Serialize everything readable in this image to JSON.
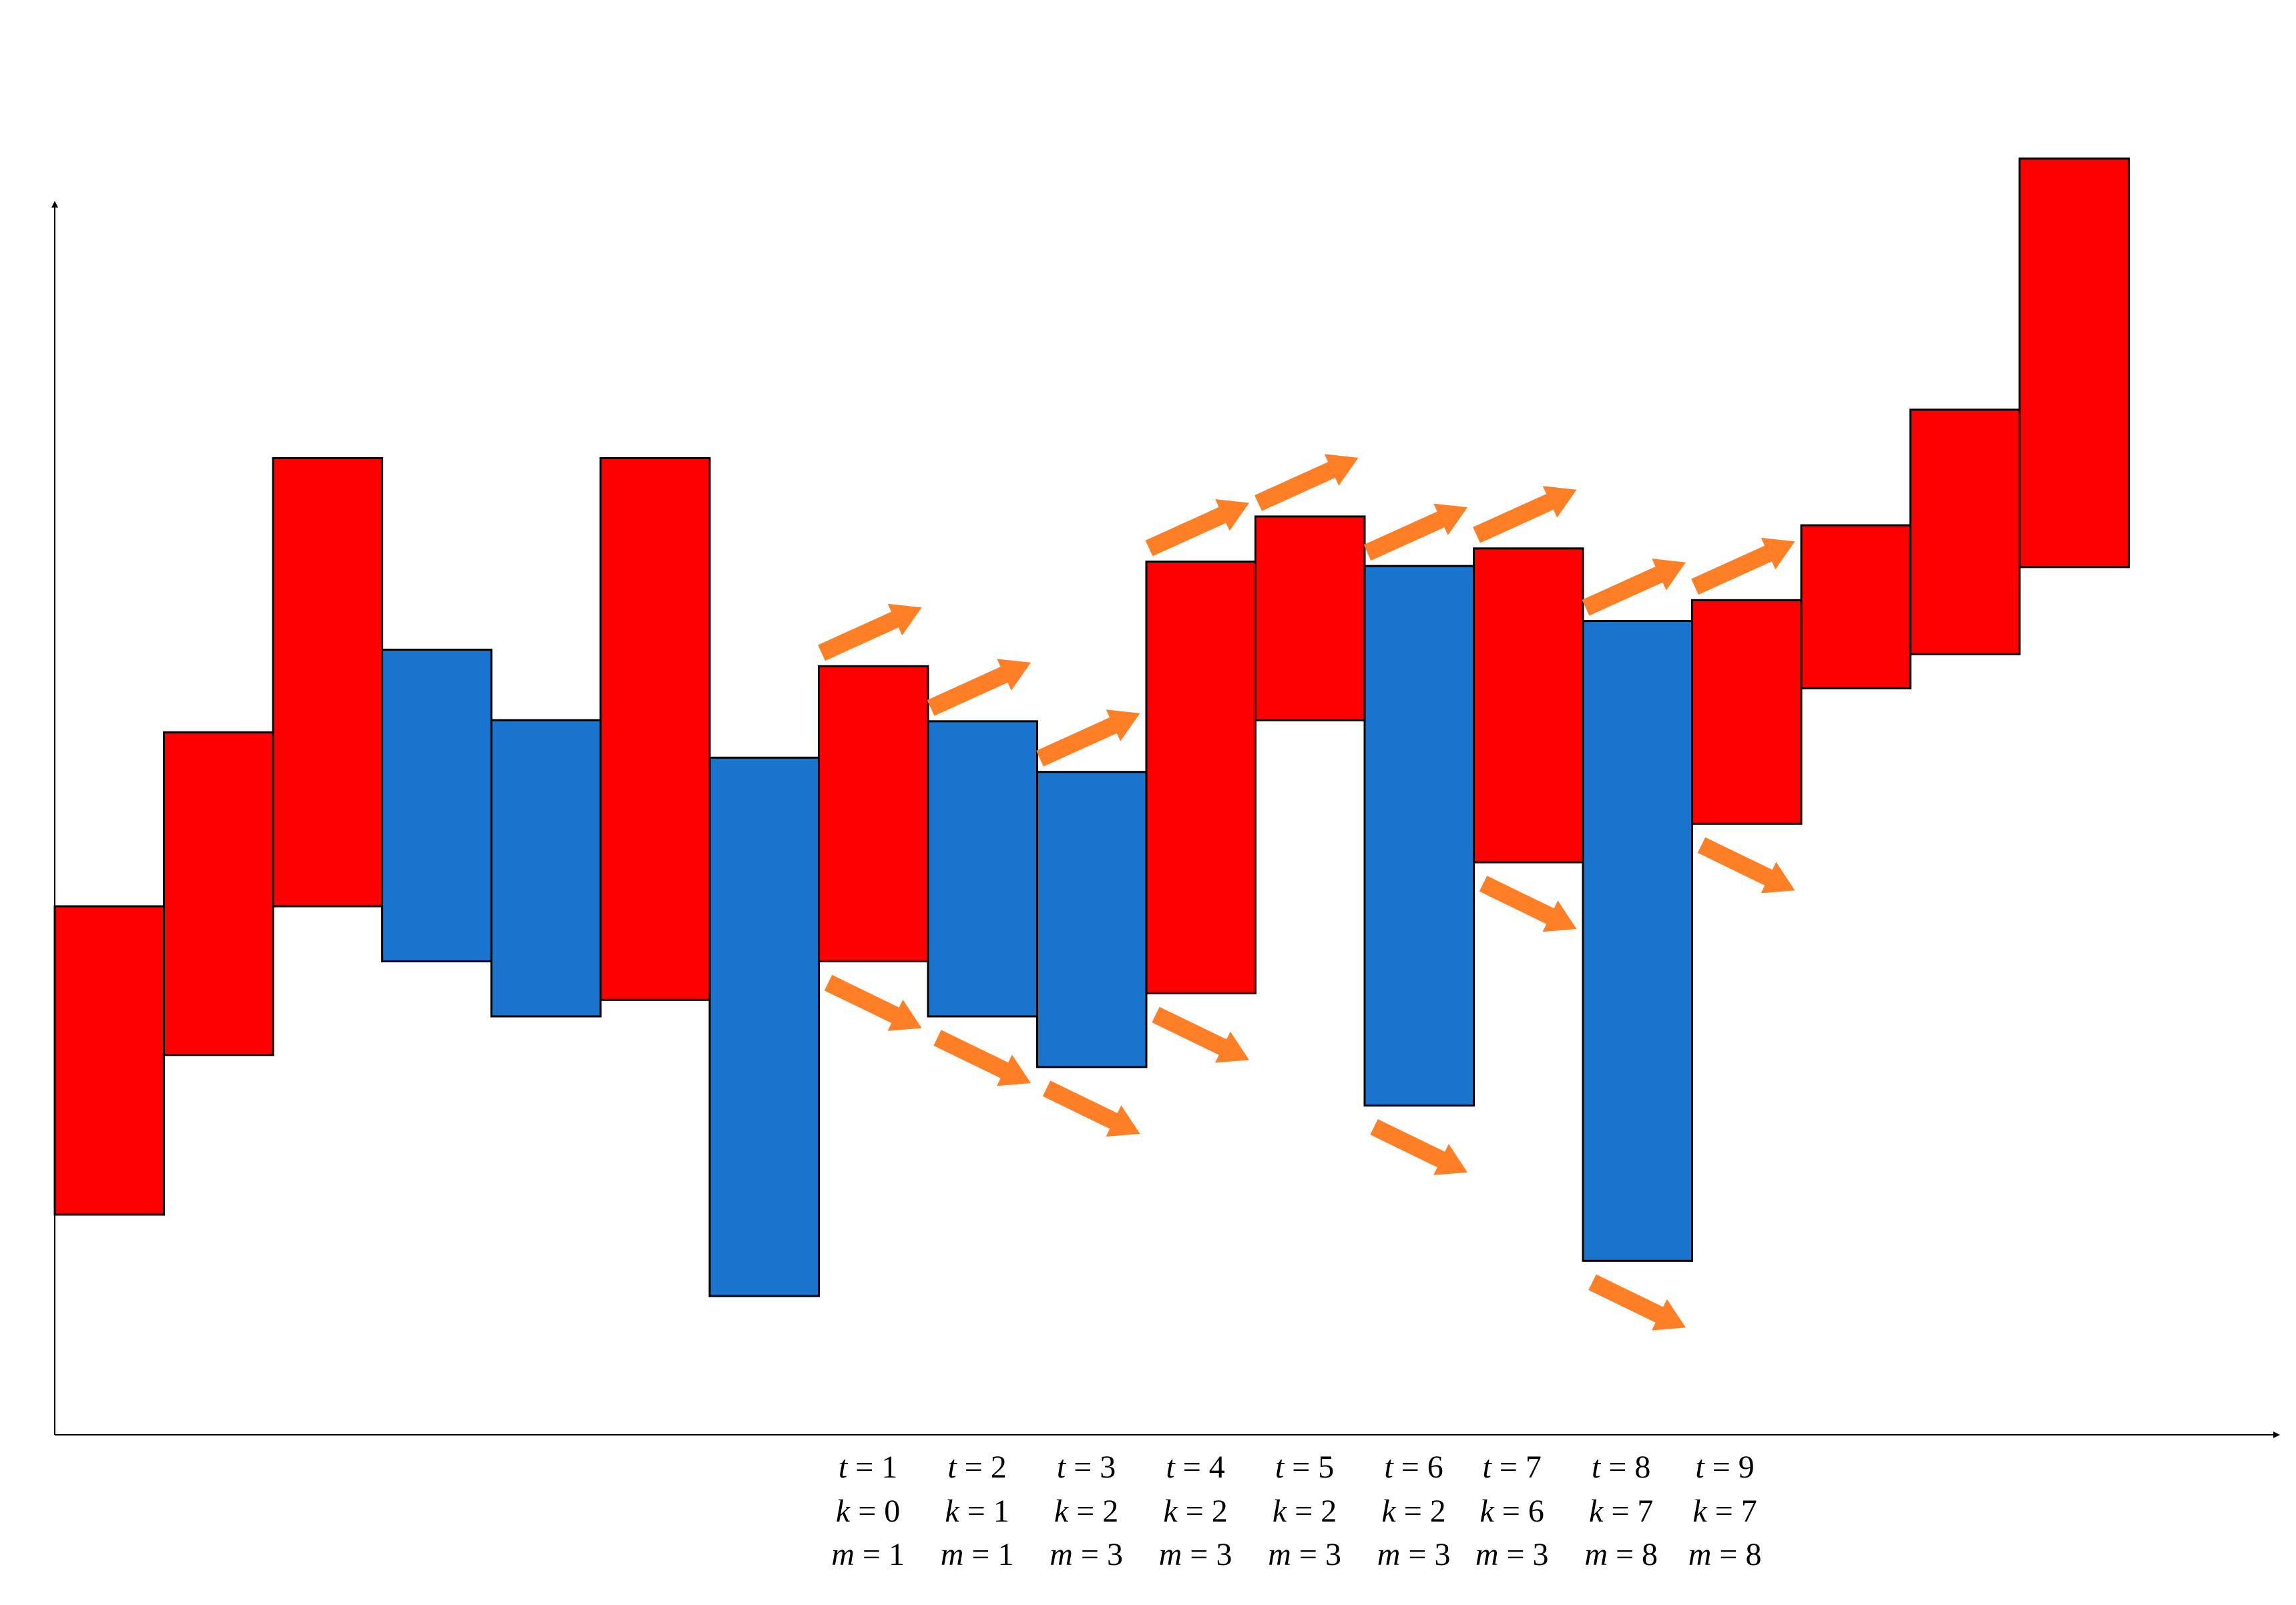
{
  "colors": {
    "up": "#ff0000",
    "down": "#1874cd",
    "arrow": "#ff7f27",
    "axis": "#000000",
    "bar_stroke": "#000000",
    "background": "#ffffff"
  },
  "chart_data": {
    "type": "candlestick-boxes",
    "title": "",
    "xlabel": "",
    "ylabel": "",
    "grid": false,
    "legend": "none",
    "xlim": [
      0,
      20
    ],
    "ylim": [
      0,
      100
    ],
    "bars": [
      {
        "i": 1,
        "kind": "up",
        "low": 20.0,
        "high": 48.0
      },
      {
        "i": 2,
        "kind": "up",
        "low": 34.5,
        "high": 63.8
      },
      {
        "i": 3,
        "kind": "up",
        "low": 48.0,
        "high": 88.7
      },
      {
        "i": 4,
        "kind": "down",
        "low": 43.0,
        "high": 71.3
      },
      {
        "i": 5,
        "kind": "down",
        "low": 38.0,
        "high": 64.9
      },
      {
        "i": 6,
        "kind": "up",
        "low": 39.5,
        "high": 88.7
      },
      {
        "i": 7,
        "kind": "down",
        "low": 12.6,
        "high": 61.5
      },
      {
        "i": 8,
        "kind": "up",
        "low": 43.0,
        "high": 69.8
      },
      {
        "i": 9,
        "kind": "down",
        "low": 38.0,
        "high": 64.8
      },
      {
        "i": 10,
        "kind": "down",
        "low": 33.4,
        "high": 60.2
      },
      {
        "i": 11,
        "kind": "up",
        "low": 40.1,
        "high": 79.3
      },
      {
        "i": 12,
        "kind": "up",
        "low": 64.9,
        "high": 83.4
      },
      {
        "i": 13,
        "kind": "down",
        "low": 29.9,
        "high": 78.9
      },
      {
        "i": 14,
        "kind": "up",
        "low": 52.0,
        "high": 80.5
      },
      {
        "i": 15,
        "kind": "down",
        "low": 15.8,
        "high": 73.9
      },
      {
        "i": 16,
        "kind": "up",
        "low": 55.5,
        "high": 75.8
      },
      {
        "i": 17,
        "kind": "up",
        "low": 67.8,
        "high": 82.6
      },
      {
        "i": 18,
        "kind": "up",
        "low": 70.9,
        "high": 93.1
      },
      {
        "i": 19,
        "kind": "up",
        "low": 78.8,
        "high": 115.9
      }
    ],
    "up_arrows": [
      7.3,
      8.3,
      9.3,
      10.3,
      11.3,
      12.3,
      13.3,
      14.3,
      15.3
    ],
    "down_arrows": [
      7.3,
      8.3,
      9.3,
      10.3,
      12.3,
      13.3,
      14.3,
      15.3
    ],
    "time_labels": [
      {
        "x": 7.45,
        "t": "t = 1",
        "k": "k = 0",
        "m": "m = 1"
      },
      {
        "x": 8.45,
        "t": "t = 2",
        "k": "k = 1",
        "m": "m = 1"
      },
      {
        "x": 9.45,
        "t": "t = 3",
        "k": "k = 2",
        "m": "m = 3"
      },
      {
        "x": 10.45,
        "t": "t = 4",
        "k": "k = 2",
        "m": "m = 3"
      },
      {
        "x": 11.45,
        "t": "t = 5",
        "k": "k = 2",
        "m": "m = 3"
      },
      {
        "x": 12.45,
        "t": "t = 6",
        "k": "k = 2",
        "m": "m = 3"
      },
      {
        "x": 13.35,
        "t": "t = 7",
        "k": "k = 6",
        "m": "m = 3"
      },
      {
        "x": 14.35,
        "t": "t = 8",
        "k": "k = 7",
        "m": "m = 8"
      },
      {
        "x": 15.3,
        "t": "t = 9",
        "k": "k = 7",
        "m": "m = 8"
      }
    ]
  }
}
